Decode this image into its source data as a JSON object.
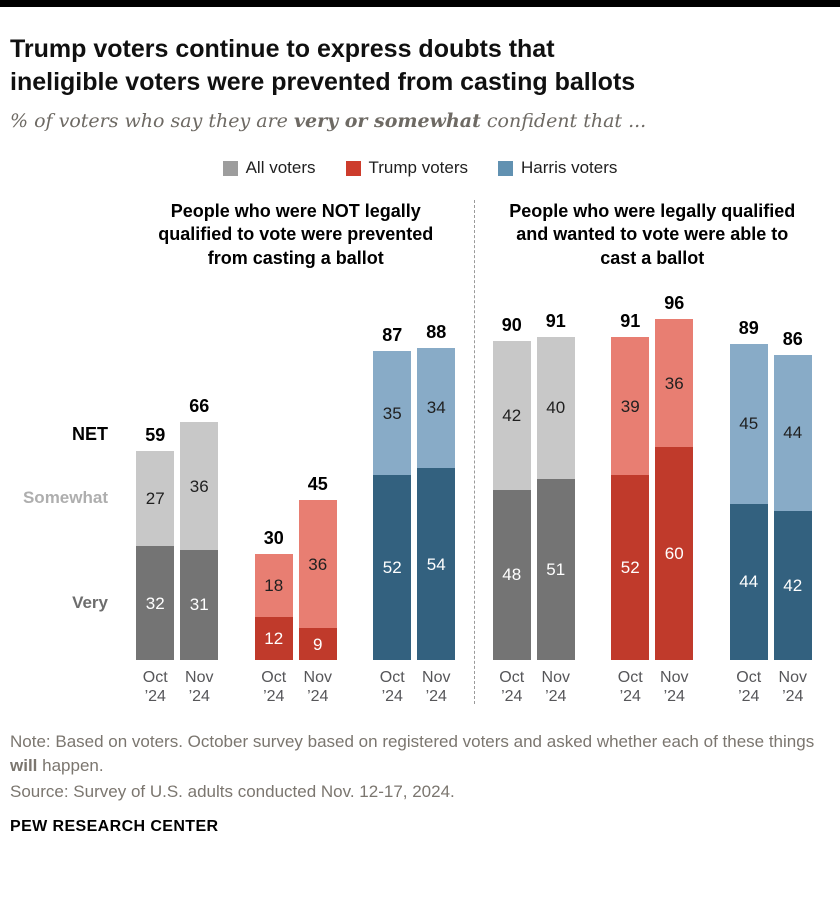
{
  "page": {
    "title_line1": "Trump voters continue to express doubts that",
    "title_line2": "ineligible voters were prevented from casting ballots",
    "subtitle": {
      "prefix": "% of voters who say they are ",
      "bold": "very or somewhat",
      "suffix": " confident that ..."
    }
  },
  "legend": {
    "items": [
      {
        "label": "All voters",
        "color": "#9d9d9d"
      },
      {
        "label": "Trump voters",
        "color": "#cd3c2c"
      },
      {
        "label": "Harris voters",
        "color": "#6191b1"
      }
    ]
  },
  "side_labels": {
    "net": "NET",
    "somewhat": "Somewhat",
    "very": "Very"
  },
  "chart_data": {
    "type": "bar",
    "stacked": true,
    "ylim": [
      0,
      100
    ],
    "value_unit": "% of voters very/somewhat confident",
    "categories": [
      {
        "month": "Oct",
        "year": "’24"
      },
      {
        "month": "Nov",
        "year": "’24"
      }
    ],
    "colors": {
      "all": {
        "very": "#747474",
        "somewhat": "#c8c8c8"
      },
      "trump": {
        "very": "#c03a2b",
        "somewhat": "#e87e72"
      },
      "harris": {
        "very": "#33617f",
        "somewhat": "#88abc7"
      },
      "seg_label_dark_bg": "#ffffff",
      "seg_label_light_bg": "#1f1f1f"
    },
    "panels": [
      {
        "title": "People who were NOT legally qualified to vote were prevented from casting a ballot",
        "groups": [
          {
            "series": "all",
            "name": "All voters",
            "bars": [
              {
                "category": "Oct ’24",
                "very": 32,
                "somewhat": 27,
                "net": 59
              },
              {
                "category": "Nov ’24",
                "very": 31,
                "somewhat": 36,
                "net": 66
              }
            ]
          },
          {
            "series": "trump",
            "name": "Trump voters",
            "bars": [
              {
                "category": "Oct ’24",
                "very": 12,
                "somewhat": 18,
                "net": 30
              },
              {
                "category": "Nov ’24",
                "very": 9,
                "somewhat": 36,
                "net": 45
              }
            ]
          },
          {
            "series": "harris",
            "name": "Harris voters",
            "bars": [
              {
                "category": "Oct ’24",
                "very": 52,
                "somewhat": 35,
                "net": 87
              },
              {
                "category": "Nov ’24",
                "very": 54,
                "somewhat": 34,
                "net": 88
              }
            ]
          }
        ]
      },
      {
        "title": "People who were legally qualified and wanted to vote were able to cast a ballot",
        "groups": [
          {
            "series": "all",
            "name": "All voters",
            "bars": [
              {
                "category": "Oct ’24",
                "very": 48,
                "somewhat": 42,
                "net": 90
              },
              {
                "category": "Nov ’24",
                "very": 51,
                "somewhat": 40,
                "net": 91
              }
            ]
          },
          {
            "series": "trump",
            "name": "Trump voters",
            "bars": [
              {
                "category": "Oct ’24",
                "very": 52,
                "somewhat": 39,
                "net": 91
              },
              {
                "category": "Nov ’24",
                "very": 60,
                "somewhat": 36,
                "net": 96
              }
            ]
          },
          {
            "series": "harris",
            "name": "Harris voters",
            "bars": [
              {
                "category": "Oct ’24",
                "very": 44,
                "somewhat": 45,
                "net": 89
              },
              {
                "category": "Nov ’24",
                "very": 42,
                "somewhat": 44,
                "net": 86
              }
            ]
          }
        ]
      }
    ]
  },
  "footer": {
    "note": {
      "prefix": "Note: Based on voters. October survey based on registered voters and asked whether each of these things ",
      "bold": "will",
      "suffix": " happen."
    },
    "source": "Source: Survey of U.S. adults conducted Nov. 12-17, 2024.",
    "brand": "PEW RESEARCH CENTER"
  }
}
